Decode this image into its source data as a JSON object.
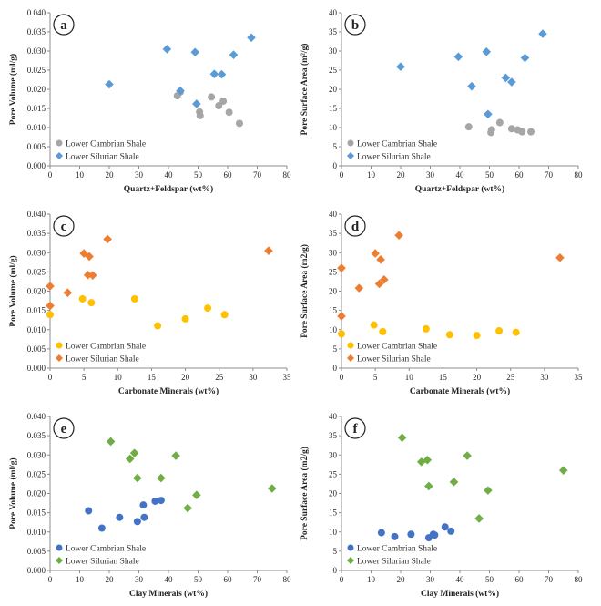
{
  "figure": {
    "colors": {
      "cambrian_gray": "#a6a6a6",
      "silurian_blue": "#5b9bd5",
      "cambrian_yellow": "#ffc000",
      "silurian_orange": "#ed7d31",
      "cambrian_darkblue": "#4472c4",
      "silurian_green": "#70ad47"
    }
  },
  "chart_data": [
    {
      "type": "scatter",
      "panel_label": "a",
      "xlabel": "Quartz+Feldspar (wt%)",
      "ylabel": "Pore Volume (ml/g)",
      "xlim": [
        0,
        80
      ],
      "ylim": [
        0,
        0.04
      ],
      "xticks": [
        "0",
        "10",
        "20",
        "30",
        "40",
        "50",
        "60",
        "70",
        "80"
      ],
      "yticks": [
        "0.000",
        "0.005",
        "0.010",
        "0.015",
        "0.020",
        "0.025",
        "0.030",
        "0.035",
        "0.040"
      ],
      "series": [
        {
          "name": "Lower Cambrian Shale",
          "marker": "circle",
          "color": "#a6a6a6",
          "points": [
            [
              43,
              0.0183
            ],
            [
              44,
              0.0193
            ],
            [
              50.5,
              0.0141
            ],
            [
              50.7,
              0.0131
            ],
            [
              54.5,
              0.018
            ],
            [
              57,
              0.0157
            ],
            [
              58.5,
              0.0169
            ],
            [
              60.5,
              0.014
            ],
            [
              64,
              0.0111
            ]
          ]
        },
        {
          "name": "Lower Silurian Shale",
          "marker": "diamond",
          "color": "#5b9bd5",
          "points": [
            [
              20,
              0.0213
            ],
            [
              39.5,
              0.0305
            ],
            [
              44,
              0.0196
            ],
            [
              49,
              0.0297
            ],
            [
              49.5,
              0.0162
            ],
            [
              55.5,
              0.024
            ],
            [
              58,
              0.0239
            ],
            [
              62,
              0.029
            ],
            [
              68,
              0.0335
            ]
          ]
        }
      ]
    },
    {
      "type": "scatter",
      "panel_label": "b",
      "xlabel": "Quartz+Feldspar (wt%)",
      "ylabel": "Pore Surface Area (m²/g)",
      "xlim": [
        0,
        80
      ],
      "ylim": [
        0,
        40
      ],
      "xticks": [
        "0",
        "10",
        "20",
        "30",
        "40",
        "50",
        "60",
        "70",
        "80"
      ],
      "yticks": [
        "0",
        "5",
        "10",
        "15",
        "20",
        "25",
        "30",
        "35",
        "40"
      ],
      "series": [
        {
          "name": "Lower Cambrian Shale",
          "marker": "circle",
          "color": "#a6a6a6",
          "points": [
            [
              43,
              10.2
            ],
            [
              50.5,
              8.7
            ],
            [
              50.7,
              9.4
            ],
            [
              53.5,
              11.3
            ],
            [
              57.5,
              9.7
            ],
            [
              59.5,
              9.4
            ],
            [
              61,
              8.9
            ],
            [
              64,
              8.9
            ]
          ]
        },
        {
          "name": "Lower Silurian Shale",
          "marker": "diamond",
          "color": "#5b9bd5",
          "points": [
            [
              20,
              25.9
            ],
            [
              39.5,
              28.5
            ],
            [
              44,
              20.8
            ],
            [
              49,
              29.8
            ],
            [
              49.5,
              13.5
            ],
            [
              55.5,
              23
            ],
            [
              57.5,
              21.9
            ],
            [
              62,
              28.2
            ],
            [
              68,
              34.5
            ]
          ]
        }
      ]
    },
    {
      "type": "scatter",
      "panel_label": "c",
      "xlabel": "Carbonate Minerals (wt%)",
      "ylabel": "Pore Volume (ml/g)",
      "xlim": [
        0,
        35
      ],
      "ylim": [
        0,
        0.04
      ],
      "xticks": [
        "0",
        "5",
        "10",
        "15",
        "20",
        "25",
        "30",
        "35"
      ],
      "yticks": [
        "0.000",
        "0.005",
        "0.010",
        "0.015",
        "0.020",
        "0.025",
        "0.030",
        "0.035",
        "0.040"
      ],
      "series": [
        {
          "name": "Lower Cambrian Shale",
          "marker": "circle",
          "color": "#ffc000",
          "points": [
            [
              0,
              0.0139
            ],
            [
              4.8,
              0.018
            ],
            [
              6.1,
              0.017
            ],
            [
              12.5,
              0.018
            ],
            [
              15.9,
              0.011
            ],
            [
              20,
              0.0128
            ],
            [
              23.3,
              0.0156
            ],
            [
              25.8,
              0.0139
            ]
          ]
        },
        {
          "name": "Lower Silurian Shale",
          "marker": "diamond",
          "color": "#ed7d31",
          "points": [
            [
              0,
              0.0213
            ],
            [
              0,
              0.0162
            ],
            [
              2.6,
              0.0196
            ],
            [
              5,
              0.0298
            ],
            [
              5.6,
              0.0242
            ],
            [
              5.8,
              0.029
            ],
            [
              6.3,
              0.0241
            ],
            [
              8.5,
              0.0335
            ],
            [
              32.3,
              0.0305
            ]
          ]
        }
      ]
    },
    {
      "type": "scatter",
      "panel_label": "d",
      "xlabel": "Carbonate Minerals (wt%)",
      "ylabel": "Pore Surface Area (m2/g)",
      "xlim": [
        0,
        35
      ],
      "ylim": [
        0,
        40
      ],
      "xticks": [
        "0",
        "5",
        "10",
        "15",
        "20",
        "25",
        "30",
        "35"
      ],
      "yticks": [
        "0",
        "5",
        "10",
        "15",
        "20",
        "25",
        "30",
        "35",
        "40"
      ],
      "series": [
        {
          "name": "Lower Cambrian Shale",
          "marker": "circle",
          "color": "#ffc000",
          "points": [
            [
              0,
              8.9
            ],
            [
              4.8,
              11.2
            ],
            [
              6.1,
              9.5
            ],
            [
              12.5,
              10.2
            ],
            [
              16,
              8.7
            ],
            [
              20,
              8.5
            ],
            [
              23.3,
              9.7
            ],
            [
              25.8,
              9.3
            ]
          ]
        },
        {
          "name": "Lower Silurian Shale",
          "marker": "diamond",
          "color": "#ed7d31",
          "points": [
            [
              0,
              26
            ],
            [
              0,
              13.5
            ],
            [
              2.6,
              20.8
            ],
            [
              5,
              29.8
            ],
            [
              5.6,
              21.9
            ],
            [
              5.8,
              28.2
            ],
            [
              6.3,
              23
            ],
            [
              8.5,
              34.5
            ],
            [
              32.3,
              28.7
            ]
          ]
        }
      ]
    },
    {
      "type": "scatter",
      "panel_label": "e",
      "xlabel": "Clay Minerals (wt%)",
      "ylabel": "Pore Volume (ml/g)",
      "xlim": [
        0,
        80
      ],
      "ylim": [
        0,
        0.04
      ],
      "xticks": [
        "0",
        "10",
        "20",
        "30",
        "40",
        "50",
        "60",
        "70",
        "80"
      ],
      "yticks": [
        "0.000",
        "0.005",
        "0.010",
        "0.015",
        "0.020",
        "0.025",
        "0.030",
        "0.035",
        "0.040"
      ],
      "series": [
        {
          "name": "Lower Cambrian Shale",
          "marker": "circle",
          "color": "#4472c4",
          "points": [
            [
              13,
              0.0155
            ],
            [
              17.5,
              0.011
            ],
            [
              23.5,
              0.0138
            ],
            [
              29.5,
              0.0127
            ],
            [
              31.5,
              0.017
            ],
            [
              31.8,
              0.0138
            ],
            [
              35.5,
              0.018
            ],
            [
              37.5,
              0.0182
            ]
          ]
        },
        {
          "name": "Lower Silurian Shale",
          "marker": "diamond",
          "color": "#70ad47",
          "points": [
            [
              20.5,
              0.0335
            ],
            [
              27,
              0.029
            ],
            [
              28.5,
              0.0305
            ],
            [
              29.5,
              0.024
            ],
            [
              37.5,
              0.024
            ],
            [
              42.5,
              0.0298
            ],
            [
              46.5,
              0.0162
            ],
            [
              49.5,
              0.0196
            ],
            [
              75,
              0.0213
            ]
          ]
        }
      ]
    },
    {
      "type": "scatter",
      "panel_label": "f",
      "xlabel": "Clay Minerals (wt%)",
      "ylabel": "Pore Surface Area (m2/g)",
      "xlim": [
        0,
        80
      ],
      "ylim": [
        0,
        40
      ],
      "xticks": [
        "0",
        "10",
        "20",
        "30",
        "40",
        "50",
        "60",
        "70",
        "80"
      ],
      "yticks": [
        "0",
        "5",
        "10",
        "15",
        "20",
        "25",
        "30",
        "35",
        "40"
      ],
      "series": [
        {
          "name": "Lower Cambrian Shale",
          "marker": "circle",
          "color": "#4472c4",
          "points": [
            [
              13.5,
              9.8
            ],
            [
              18,
              8.8
            ],
            [
              23.5,
              9.4
            ],
            [
              29.5,
              8.5
            ],
            [
              31,
              9.4
            ],
            [
              31.5,
              9.2
            ],
            [
              35,
              11.3
            ],
            [
              37,
              10.2
            ]
          ]
        },
        {
          "name": "Lower Silurian Shale",
          "marker": "diamond",
          "color": "#70ad47",
          "points": [
            [
              20.5,
              34.5
            ],
            [
              27,
              28.2
            ],
            [
              29,
              28.7
            ],
            [
              29.5,
              21.9
            ],
            [
              38,
              23
            ],
            [
              42.5,
              29.8
            ],
            [
              46.5,
              13.5
            ],
            [
              49.5,
              20.8
            ],
            [
              75,
              26
            ]
          ]
        }
      ]
    }
  ]
}
